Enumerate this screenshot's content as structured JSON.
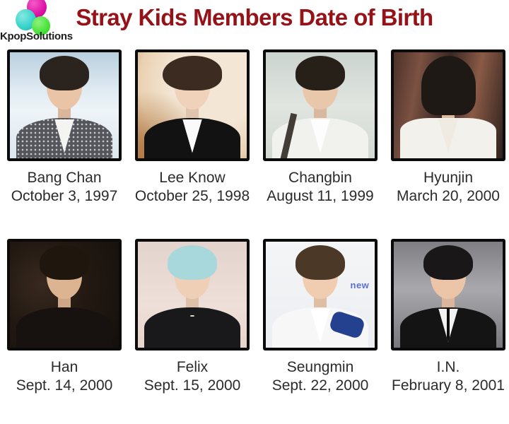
{
  "brand": {
    "name": "KpopSolutions",
    "balloon_colors": {
      "pink": "#dd10a4",
      "cyan": "#35d2c9",
      "green": "#47e338"
    }
  },
  "title": {
    "text": "Stray Kids Members Date of Birth",
    "color": "#951318"
  },
  "text_color": "#2b2b2b",
  "members": [
    {
      "name": "Bang Chan",
      "dob": "October 3, 1997",
      "photo": {
        "bg": "linear-gradient(180deg,#b9cfdf 0%,#dfeaf2 35%,#eef4f8 55%,#dce6ed 100%)",
        "hair": "#2b241e",
        "skin": "#eac4a6",
        "top": "#55565c",
        "shirt": "#f4f4f2"
      }
    },
    {
      "name": "Lee Know",
      "dob": "October 25, 1998",
      "photo": {
        "bg": "radial-gradient(circle at 70% 30%,#f3e6d4 40%,#e9d2b3 70%,#c08c58 100%)",
        "hair": "#3c2b21",
        "skin": "#f0d2ba",
        "top": "#121212",
        "shirt": "#fafafa"
      }
    },
    {
      "name": "Changbin",
      "dob": "August 11, 1999",
      "photo": {
        "bg": "linear-gradient(180deg,#ccd4cf 0%,#e0e5e0 50%,#d2d8d2 100%)",
        "hair": "#272019",
        "skin": "#e8c7ab",
        "top": "#f1f2ee",
        "shirt": "#fdfdfd",
        "accent": "#433d38"
      }
    },
    {
      "name": "Hyunjin",
      "dob": "March 20, 2000",
      "photo": {
        "bg": "linear-gradient(100deg,#4b3029 0%,#7c5243 22%,#3a2722 45%,#8a5a46 70%,#2e211d 100%)",
        "hair": "#1f1915",
        "skin": "#eec9ab",
        "top": "#f3f1ec",
        "shirt": "#efeae2"
      }
    },
    {
      "name": "Han",
      "dob": "Sept. 14, 2000",
      "photo": {
        "bg": "radial-gradient(circle at 30% 40%,#3b2b20 0%,#241a13 45%,#15100c 100%)",
        "hair": "#20180f",
        "skin": "#e6bb97",
        "top": "#181310"
      }
    },
    {
      "name": "Felix",
      "dob": "Sept. 15, 2000",
      "photo": {
        "bg": "linear-gradient(180deg,#e3d3cd 0%,#eedfd8 60%,#e7d4cc 100%)",
        "hair": "#a8d8dc",
        "skin": "#efcfb5",
        "top": "#19191b"
      }
    },
    {
      "name": "Seungmin",
      "dob": "Sept. 22, 2000",
      "photo": {
        "bg": "linear-gradient(180deg,#f4f5f7 0%,#eceef1 100%)",
        "hair": "#4c3827",
        "skin": "#f0cdb0",
        "top": "#f7f7f7",
        "shirt": "#ffffff",
        "accent": "#23418f",
        "bgtext": "#5b6fd4",
        "bg_text": "new"
      }
    },
    {
      "name": "I.N.",
      "dob": "February 8, 2001",
      "photo": {
        "bg": "linear-gradient(180deg,#7e7e83 0%,#a9a9ad 45%,#77777b 100%)",
        "hair": "#191717",
        "skin": "#ecc4a8",
        "top": "#141414",
        "shirt": "#f2f2f2",
        "accent": "#0d0d0d"
      }
    }
  ]
}
